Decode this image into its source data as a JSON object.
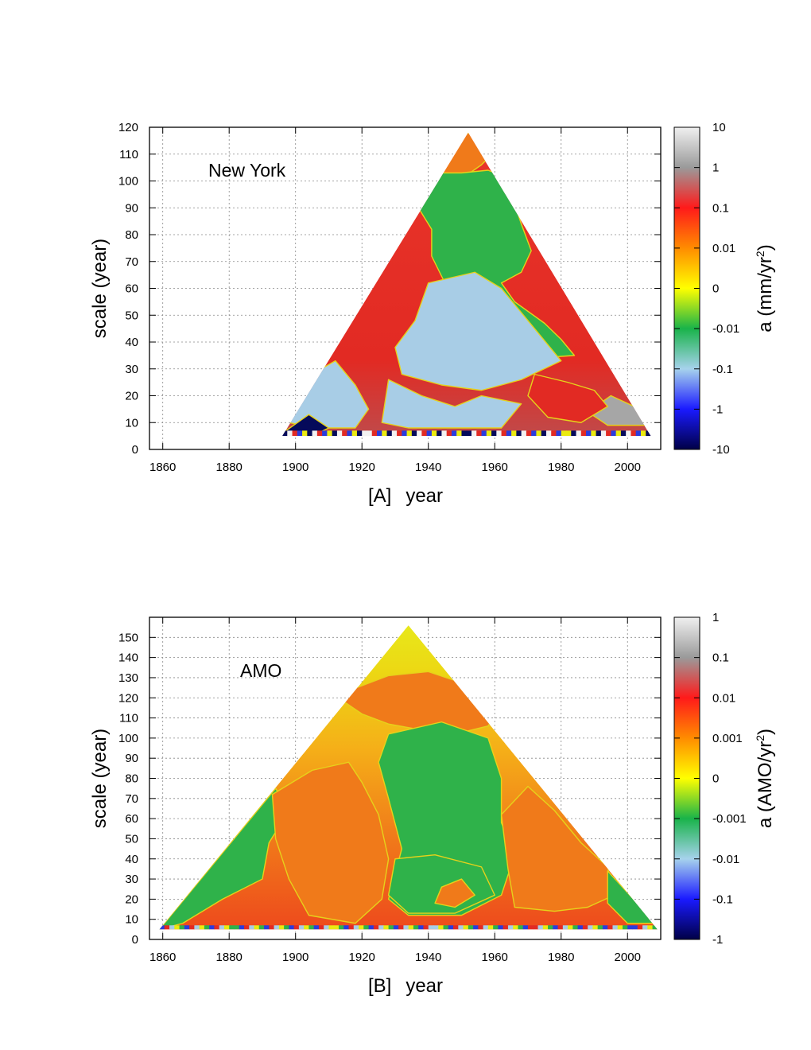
{
  "chart_data": [
    {
      "type": "heatmap",
      "panel_label": "[A]",
      "annotation": "New York",
      "xlabel": "year",
      "ylabel": "scale (year)",
      "xlim": [
        1856,
        2010
      ],
      "ylim": [
        0,
        120
      ],
      "x_ticks": [
        1860,
        1880,
        1900,
        1920,
        1940,
        1960,
        1980,
        2000
      ],
      "y_ticks": [
        0,
        10,
        20,
        30,
        40,
        50,
        60,
        70,
        80,
        90,
        100,
        110,
        120
      ],
      "grid": true,
      "colorbar": {
        "label_prefix": "a (mm/yr",
        "label_sup": "2",
        "label_suffix": ")",
        "ticks": [
          "10",
          "1",
          "0.1",
          "0.01",
          "0",
          "-0.01",
          "-0.1",
          "-1",
          "-10"
        ]
      },
      "triangle": {
        "x_left": 1896,
        "x_right": 2007,
        "apex_x": 1952,
        "apex_y": 118,
        "base_y": 5
      },
      "regions": [
        {
          "name": "orange-apex",
          "value": "0.01",
          "polygon": [
            [
              1952,
              118
            ],
            [
              1945,
              110
            ],
            [
              1942,
              102
            ],
            [
              1949,
              100
            ],
            [
              1956,
              106
            ],
            [
              1960,
              111
            ]
          ]
        },
        {
          "name": "green-core",
          "value": "-0.01",
          "polygon": [
            [
              1944,
              103
            ],
            [
              1950,
              103
            ],
            [
              1958,
              104
            ],
            [
              1962,
              102
            ],
            [
              1965,
              95
            ],
            [
              1968,
              84
            ],
            [
              1971,
              74
            ],
            [
              1968,
              66
            ],
            [
              1962,
              62
            ],
            [
              1966,
              55
            ],
            [
              1975,
              47
            ],
            [
              1980,
              41
            ],
            [
              1984,
              35
            ],
            [
              1972,
              34
            ],
            [
              1960,
              34
            ],
            [
              1950,
              36
            ],
            [
              1941,
              38
            ],
            [
              1935,
              40
            ],
            [
              1938,
              48
            ],
            [
              1942,
              55
            ],
            [
              1945,
              62
            ],
            [
              1941,
              72
            ],
            [
              1941,
              82
            ],
            [
              1936,
              92
            ],
            [
              1937,
              100
            ]
          ]
        },
        {
          "name": "lightblue-center",
          "value": "-0.1",
          "polygon": [
            [
              1940,
              62
            ],
            [
              1954,
              66
            ],
            [
              1962,
              60
            ],
            [
              1972,
              45
            ],
            [
              1980,
              33
            ],
            [
              1968,
              26
            ],
            [
              1956,
              22
            ],
            [
              1944,
              24
            ],
            [
              1932,
              28
            ],
            [
              1930,
              38
            ],
            [
              1936,
              48
            ]
          ]
        },
        {
          "name": "blue-left",
          "value": "-0.1",
          "polygon": [
            [
              1902,
              26
            ],
            [
              1912,
              33
            ],
            [
              1918,
              24
            ],
            [
              1922,
              15
            ],
            [
              1918,
              8
            ],
            [
              1906,
              8
            ],
            [
              1898,
              10
            ]
          ]
        },
        {
          "name": "blue-center",
          "value": "-0.1",
          "polygon": [
            [
              1928,
              26
            ],
            [
              1938,
              20
            ],
            [
              1948,
              16
            ],
            [
              1956,
              20
            ],
            [
              1968,
              17
            ],
            [
              1962,
              8
            ],
            [
              1948,
              8
            ],
            [
              1934,
              8
            ],
            [
              1926,
              10
            ]
          ]
        },
        {
          "name": "grey-right",
          "value": "1",
          "polygon": [
            [
              1995,
              20
            ],
            [
              2002,
              16
            ],
            [
              2006,
              9
            ],
            [
              1994,
              9
            ],
            [
              1988,
              14
            ]
          ]
        },
        {
          "name": "red-bottom-right",
          "value": "0.1",
          "polygon": [
            [
              1972,
              28
            ],
            [
              1982,
              25
            ],
            [
              1990,
              22
            ],
            [
              1994,
              16
            ],
            [
              1986,
              10
            ],
            [
              1976,
              12
            ],
            [
              1970,
              20
            ]
          ]
        },
        {
          "name": "navy-base-left",
          "value": "-10",
          "polygon": [
            [
              1896,
              6
            ],
            [
              1904,
              13
            ],
            [
              1910,
              8
            ],
            [
              1905,
              5
            ]
          ]
        }
      ]
    },
    {
      "type": "heatmap",
      "panel_label": "[B]",
      "annotation": "AMO",
      "xlabel": "year",
      "ylabel": "scale (year)",
      "xlim": [
        1856,
        2010
      ],
      "ylim": [
        0,
        160
      ],
      "x_ticks": [
        1860,
        1880,
        1900,
        1920,
        1940,
        1960,
        1980,
        2000
      ],
      "y_ticks": [
        0,
        10,
        20,
        30,
        40,
        50,
        60,
        70,
        80,
        90,
        100,
        110,
        120,
        130,
        140,
        150
      ],
      "grid": true,
      "colorbar": {
        "label_prefix": "a (AMO/yr",
        "label_sup": "2",
        "label_suffix": ")",
        "ticks": [
          "1",
          "0.1",
          "0.01",
          "0.001",
          "0",
          "-0.001",
          "-0.01",
          "-0.1",
          "-1"
        ]
      },
      "triangle": {
        "x_left": 1859,
        "x_right": 2009,
        "apex_x": 1934,
        "apex_y": 156,
        "base_y": 5
      },
      "regions": [
        {
          "name": "orange-upper",
          "value": "0.001",
          "polygon": [
            [
              1912,
              121
            ],
            [
              1920,
              112
            ],
            [
              1928,
              107
            ],
            [
              1938,
              104
            ],
            [
              1948,
              102
            ],
            [
              1958,
              106
            ],
            [
              1962,
              116
            ],
            [
              1949,
              128
            ],
            [
              1940,
              133
            ],
            [
              1928,
              131
            ]
          ]
        },
        {
          "name": "green-left",
          "value": "-0.001",
          "polygon": [
            [
              1859,
              5
            ],
            [
              1880,
              47
            ],
            [
              1894,
              75
            ],
            [
              1898,
              64
            ],
            [
              1892,
              48
            ],
            [
              1890,
              30
            ],
            [
              1878,
              20
            ],
            [
              1866,
              8
            ]
          ]
        },
        {
          "name": "red-left",
          "value": "0.01",
          "polygon": [
            [
              1893,
              72
            ],
            [
              1905,
              84
            ],
            [
              1916,
              88
            ],
            [
              1920,
              78
            ],
            [
              1925,
              62
            ],
            [
              1928,
              40
            ],
            [
              1926,
              20
            ],
            [
              1918,
              8
            ],
            [
              1904,
              12
            ],
            [
              1898,
              30
            ],
            [
              1894,
              50
            ]
          ]
        },
        {
          "name": "green-center",
          "value": "-0.001",
          "polygon": [
            [
              1928,
              102
            ],
            [
              1944,
              108
            ],
            [
              1958,
              100
            ],
            [
              1962,
              80
            ],
            [
              1962,
              58
            ],
            [
              1966,
              42
            ],
            [
              1962,
              22
            ],
            [
              1950,
              12
            ],
            [
              1934,
              12
            ],
            [
              1928,
              20
            ],
            [
              1932,
              45
            ],
            [
              1928,
              70
            ],
            [
              1925,
              88
            ]
          ]
        },
        {
          "name": "lightblue-center",
          "value": "-0.01",
          "polygon": [
            [
              1930,
              40
            ],
            [
              1942,
              42
            ],
            [
              1956,
              36
            ],
            [
              1960,
              22
            ],
            [
              1948,
              13
            ],
            [
              1934,
              13
            ],
            [
              1928,
              22
            ]
          ]
        },
        {
          "name": "red-right",
          "value": "0.01",
          "polygon": [
            [
              1962,
              62
            ],
            [
              1970,
              76
            ],
            [
              1978,
              64
            ],
            [
              1986,
              48
            ],
            [
              1994,
              36
            ],
            [
              1996,
              22
            ],
            [
              1988,
              16
            ],
            [
              1978,
              14
            ],
            [
              1966,
              16
            ],
            [
              1964,
              35
            ]
          ]
        },
        {
          "name": "green-right",
          "value": "-0.001",
          "polygon": [
            [
              1994,
              34
            ],
            [
              2004,
              16
            ],
            [
              2009,
              8
            ],
            [
              2000,
              8
            ],
            [
              1994,
              18
            ]
          ]
        },
        {
          "name": "red-patch-center",
          "value": "0.01",
          "polygon": [
            [
              1944,
              26
            ],
            [
              1950,
              30
            ],
            [
              1954,
              22
            ],
            [
              1948,
              16
            ],
            [
              1942,
              18
            ]
          ]
        }
      ]
    }
  ],
  "panels": [
    {
      "annotation": "New York",
      "xlabel_prefix": "[A]",
      "xlabel": "year",
      "ylabel": "scale (year)",
      "x_ticks": [
        "1860",
        "1880",
        "1900",
        "1920",
        "1940",
        "1960",
        "1980",
        "2000"
      ],
      "y_ticks": [
        "0",
        "10",
        "20",
        "30",
        "40",
        "50",
        "60",
        "70",
        "80",
        "90",
        "100",
        "110",
        "120"
      ],
      "cb_ticks": [
        "10",
        "1",
        "0.1",
        "0.01",
        "0",
        "-0.01",
        "-0.1",
        "-1",
        "-10"
      ],
      "cb_label_prefix": "a (mm/yr",
      "cb_label_sup": "2",
      "cb_label_suffix": ")"
    },
    {
      "annotation": "AMO",
      "xlabel_prefix": "[B]",
      "xlabel": "year",
      "ylabel": "scale (year)",
      "x_ticks": [
        "1860",
        "1880",
        "1900",
        "1920",
        "1940",
        "1960",
        "1980",
        "2000"
      ],
      "y_ticks": [
        "0",
        "10",
        "20",
        "30",
        "40",
        "50",
        "60",
        "70",
        "80",
        "90",
        "100",
        "110",
        "120",
        "130",
        "140",
        "150"
      ],
      "cb_ticks": [
        "1",
        "0.1",
        "0.01",
        "0.001",
        "0",
        "-0.001",
        "-0.01",
        "-0.1",
        "-1"
      ],
      "cb_label_prefix": "a (AMO/yr",
      "cb_label_sup": "2",
      "cb_label_suffix": ")"
    }
  ],
  "colors": {
    "base_red": "#e22a23",
    "base_orange": "#f07a1a",
    "base_yellow": "#eaea10",
    "green": "#2fb24a",
    "light_blue": "#a8cde6",
    "blue": "#2a3cde",
    "navy": "#050a5a",
    "grey": "#a6a6a6",
    "white": "#f2f2f2",
    "grid": "#888888"
  }
}
